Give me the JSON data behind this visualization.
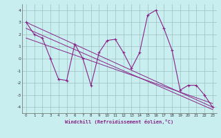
{
  "xlabel": "Windchill (Refroidissement éolien,°C)",
  "x": [
    0,
    1,
    2,
    3,
    4,
    5,
    6,
    7,
    8,
    9,
    10,
    11,
    12,
    13,
    14,
    15,
    16,
    17,
    18,
    19,
    20,
    21,
    22,
    23
  ],
  "y_main": [
    3.0,
    2.0,
    1.7,
    0.0,
    -1.7,
    -1.8,
    1.2,
    0.0,
    -2.2,
    0.5,
    1.5,
    1.6,
    0.5,
    -0.8,
    0.5,
    3.6,
    4.0,
    2.5,
    0.7,
    -2.6,
    -2.2,
    -2.2,
    -3.0,
    -4.0
  ],
  "trend1_x": [
    0,
    23
  ],
  "trend1_y": [
    3.0,
    -4.0
  ],
  "trend2_x": [
    0,
    23
  ],
  "trend2_y": [
    1.7,
    -3.7
  ],
  "trend3_x": [
    0,
    23
  ],
  "trend3_y": [
    2.5,
    -4.2
  ],
  "line_color": "#882288",
  "bg_color": "#c8eef0",
  "grid_color": "#9fbfbf",
  "ylim": [
    -4.5,
    4.5
  ],
  "xlim": [
    -0.5,
    23.5
  ],
  "yticks": [
    -4,
    -3,
    -2,
    -1,
    0,
    1,
    2,
    3,
    4
  ],
  "xticks": [
    0,
    1,
    2,
    3,
    4,
    5,
    6,
    7,
    8,
    9,
    10,
    11,
    12,
    13,
    14,
    15,
    16,
    17,
    18,
    19,
    20,
    21,
    22,
    23
  ]
}
